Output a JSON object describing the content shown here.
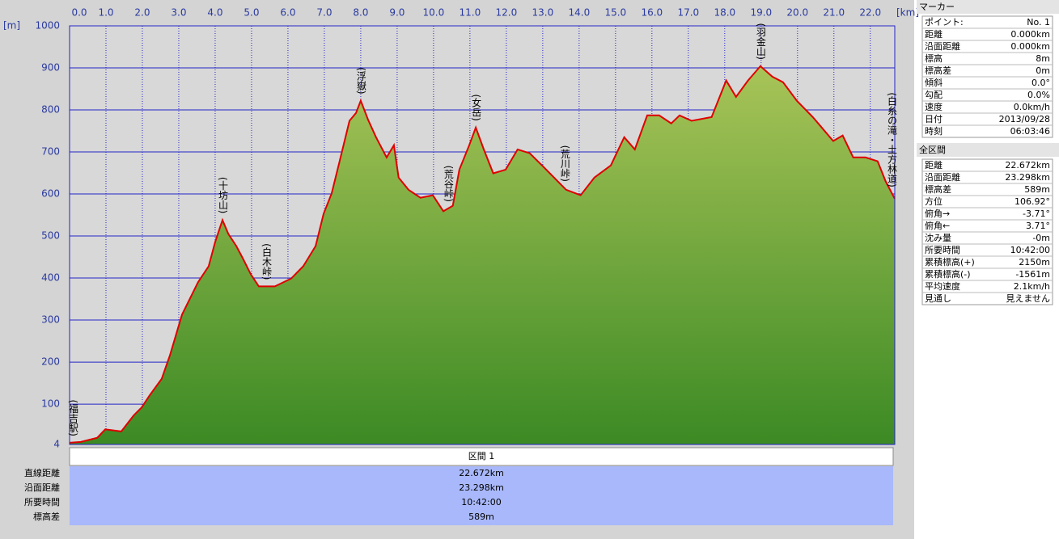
{
  "chart_data": {
    "type": "area",
    "y_unit": "[m]",
    "x_unit": "[km]",
    "x": [
      0,
      0.31,
      0.76,
      0.98,
      1.42,
      1.76,
      1.98,
      2.2,
      2.53,
      2.76,
      3.09,
      3.53,
      3.82,
      4.0,
      4.2,
      4.36,
      4.58,
      4.76,
      4.98,
      5.2,
      5.64,
      6.09,
      6.42,
      6.76,
      6.98,
      7.2,
      7.42,
      7.69,
      7.87,
      8.0,
      8.2,
      8.42,
      8.71,
      8.91,
      9.04,
      9.31,
      9.64,
      9.98,
      10.27,
      10.53,
      10.71,
      10.98,
      11.16,
      11.38,
      11.64,
      11.98,
      12.31,
      12.64,
      12.98,
      13.31,
      13.64,
      14.04,
      14.42,
      14.87,
      15.24,
      15.53,
      15.87,
      16.2,
      16.53,
      16.76,
      17.09,
      17.64,
      18.04,
      18.31,
      18.64,
      18.98,
      19.31,
      19.6,
      19.98,
      20.42,
      20.98,
      21.24,
      21.53,
      21.87,
      22.2,
      22.42,
      22.67
    ],
    "values": [
      8,
      10,
      20,
      40,
      35,
      73,
      92,
      121,
      160,
      217,
      313,
      390,
      428,
      486,
      538,
      505,
      476,
      447,
      409,
      380,
      380,
      399,
      428,
      476,
      553,
      601,
      678,
      774,
      793,
      822,
      777,
      735,
      687,
      716,
      639,
      610,
      591,
      597,
      559,
      572,
      658,
      716,
      758,
      706,
      649,
      658,
      706,
      697,
      668,
      639,
      610,
      597,
      639,
      668,
      735,
      706,
      787,
      787,
      768,
      787,
      774,
      783,
      870,
      831,
      870,
      904,
      879,
      866,
      822,
      783,
      726,
      739,
      687,
      687,
      678,
      630,
      589
    ],
    "line_color": "#e00000",
    "fill_top": "#a8c458",
    "fill_bottom": "#3c8a24",
    "plot_bg": "#d8d8d8",
    "grid_color": "#2424c8",
    "xlim": [
      0,
      22.672
    ],
    "ylim": [
      4,
      1000
    ],
    "xticks": [
      {
        "value": 0,
        "label": "0.0"
      },
      {
        "value": 1,
        "label": "1.0"
      },
      {
        "value": 2,
        "label": "2.0"
      },
      {
        "value": 3,
        "label": "3.0"
      },
      {
        "value": 4,
        "label": "4.0"
      },
      {
        "value": 5,
        "label": "5.0"
      },
      {
        "value": 6,
        "label": "6.0"
      },
      {
        "value": 7,
        "label": "7.0"
      },
      {
        "value": 8,
        "label": "8.0"
      },
      {
        "value": 9,
        "label": "9.0"
      },
      {
        "value": 10,
        "label": "10.0"
      },
      {
        "value": 11,
        "label": "11.0"
      },
      {
        "value": 12,
        "label": "12.0"
      },
      {
        "value": 13,
        "label": "13.0"
      },
      {
        "value": 14,
        "label": "14.0"
      },
      {
        "value": 15,
        "label": "15.0"
      },
      {
        "value": 16,
        "label": "16.0"
      },
      {
        "value": 17,
        "label": "17.0"
      },
      {
        "value": 18,
        "label": "18.0"
      },
      {
        "value": 19,
        "label": "19.0"
      },
      {
        "value": 20,
        "label": "20.0"
      },
      {
        "value": 21,
        "label": "21.0"
      },
      {
        "value": 22,
        "label": "22.0"
      }
    ],
    "yticks": [
      4,
      100,
      200,
      300,
      400,
      500,
      600,
      700,
      800,
      900,
      1000
    ],
    "grid": true,
    "annotations": [
      {
        "text": "(福吉駅)",
        "x": 0
      },
      {
        "text": "(十坊山)",
        "x": 4.2
      },
      {
        "text": "(白木峠)",
        "x": 5.4
      },
      {
        "text": "(浮嶽)",
        "x": 8.0
      },
      {
        "text": "(荒谷峠)",
        "x": 10.4
      },
      {
        "text": "(女岳)",
        "x": 11.16
      },
      {
        "text": "(荒川峠)",
        "x": 13.6
      },
      {
        "text": "(羽金山)",
        "x": 18.98
      },
      {
        "text": "(白糸の滝・土方林道)",
        "x": 22.6
      }
    ]
  },
  "section": {
    "title": "区間 1",
    "rows": [
      {
        "label": "直線距離",
        "value": "22.672km"
      },
      {
        "label": "沿面距離",
        "value": "23.298km"
      },
      {
        "label": "所要時間",
        "value": "10:42:00"
      },
      {
        "label": "標高差",
        "value": "589m"
      }
    ]
  },
  "marker": {
    "title": "マーカー",
    "rows": [
      [
        "ポイント:",
        "No. 1"
      ],
      [
        "距離",
        "0.000km"
      ],
      [
        "沿面距離",
        "0.000km"
      ],
      [
        "標高",
        "8m"
      ],
      [
        "標高差",
        "0m"
      ],
      [
        "傾斜",
        "0.0°"
      ],
      [
        "勾配",
        "0.0%"
      ],
      [
        "速度",
        "0.0km/h"
      ],
      [
        "日付",
        "2013/09/28"
      ],
      [
        "時刻",
        "06:03:46"
      ]
    ]
  },
  "total": {
    "title": "全区間",
    "rows": [
      [
        "距離",
        "22.672km"
      ],
      [
        "沿面距離",
        "23.298km"
      ],
      [
        "標高差",
        "589m"
      ],
      [
        "方位",
        "106.92°"
      ],
      [
        "俯角→",
        "-3.71°"
      ],
      [
        "俯角←",
        "3.71°"
      ],
      [
        "沈み量",
        "-0m"
      ],
      [
        "所要時間",
        "10:42:00"
      ],
      [
        "累積標高(+)",
        "2150m"
      ],
      [
        "累積標高(-)",
        "-1561m"
      ],
      [
        "平均速度",
        "2.1km/h"
      ],
      [
        "見通し",
        "見えません"
      ]
    ]
  }
}
